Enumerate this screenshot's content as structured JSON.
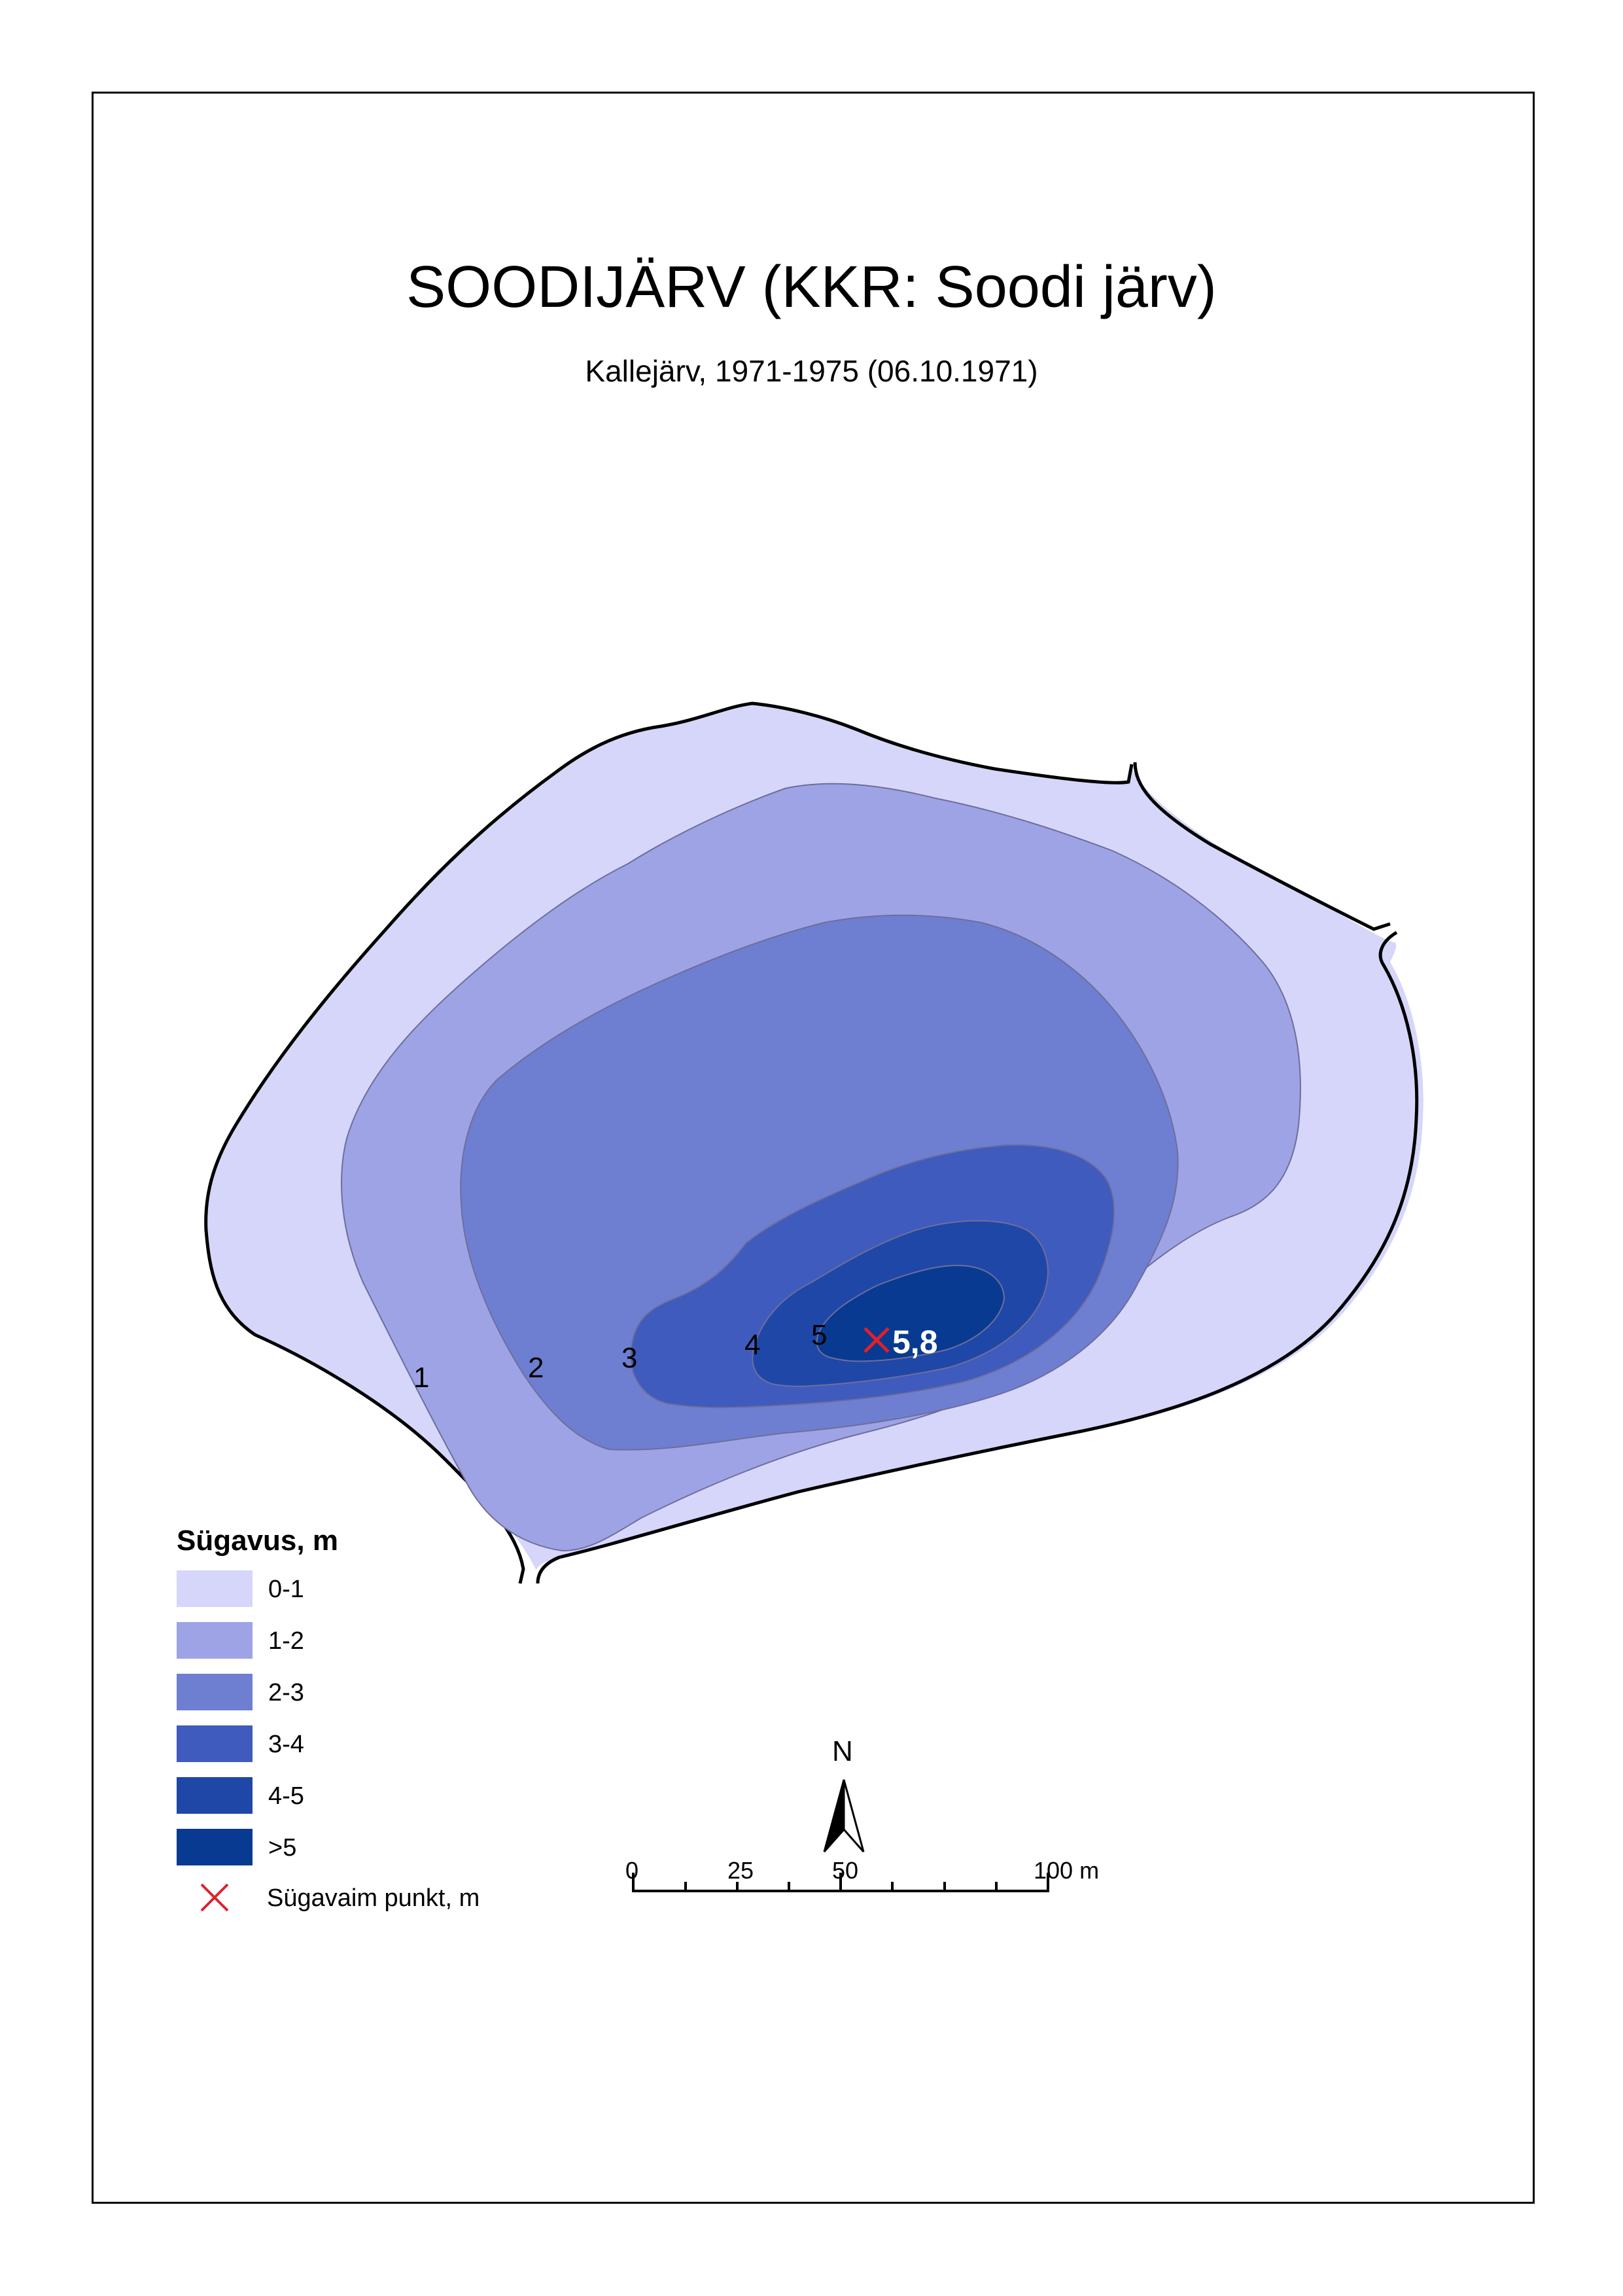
{
  "map": {
    "title": "SOODIJÄRV (KKR: Soodi järv)",
    "subtitle": "Kallejärv, 1971-1975 (06.10.1971)"
  },
  "depth_zones": [
    {
      "label": "0-1",
      "color": "#d6d6fa"
    },
    {
      "label": "1-2",
      "color": "#9ea3e6"
    },
    {
      "label": "2-3",
      "color": "#6e7fd2"
    },
    {
      "label": "3-4",
      "color": "#3f5bbd"
    },
    {
      "label": "4-5",
      "color": "#1f47a8"
    },
    {
      "label": ">5",
      "color": "#083a91"
    }
  ],
  "contour_labels": [
    "1",
    "2",
    "3",
    "4",
    "5"
  ],
  "deepest_point": {
    "value": "5,8",
    "color": "#e0202a"
  },
  "legend": {
    "title": "Sügavus, m",
    "deepest_label": "Sügavaim punkt, m"
  },
  "north_arrow": {
    "label": "N",
    "icon": "north-arrow-icon"
  },
  "scale_bar": {
    "labels": [
      "0",
      "25",
      "50",
      "100 m"
    ]
  }
}
